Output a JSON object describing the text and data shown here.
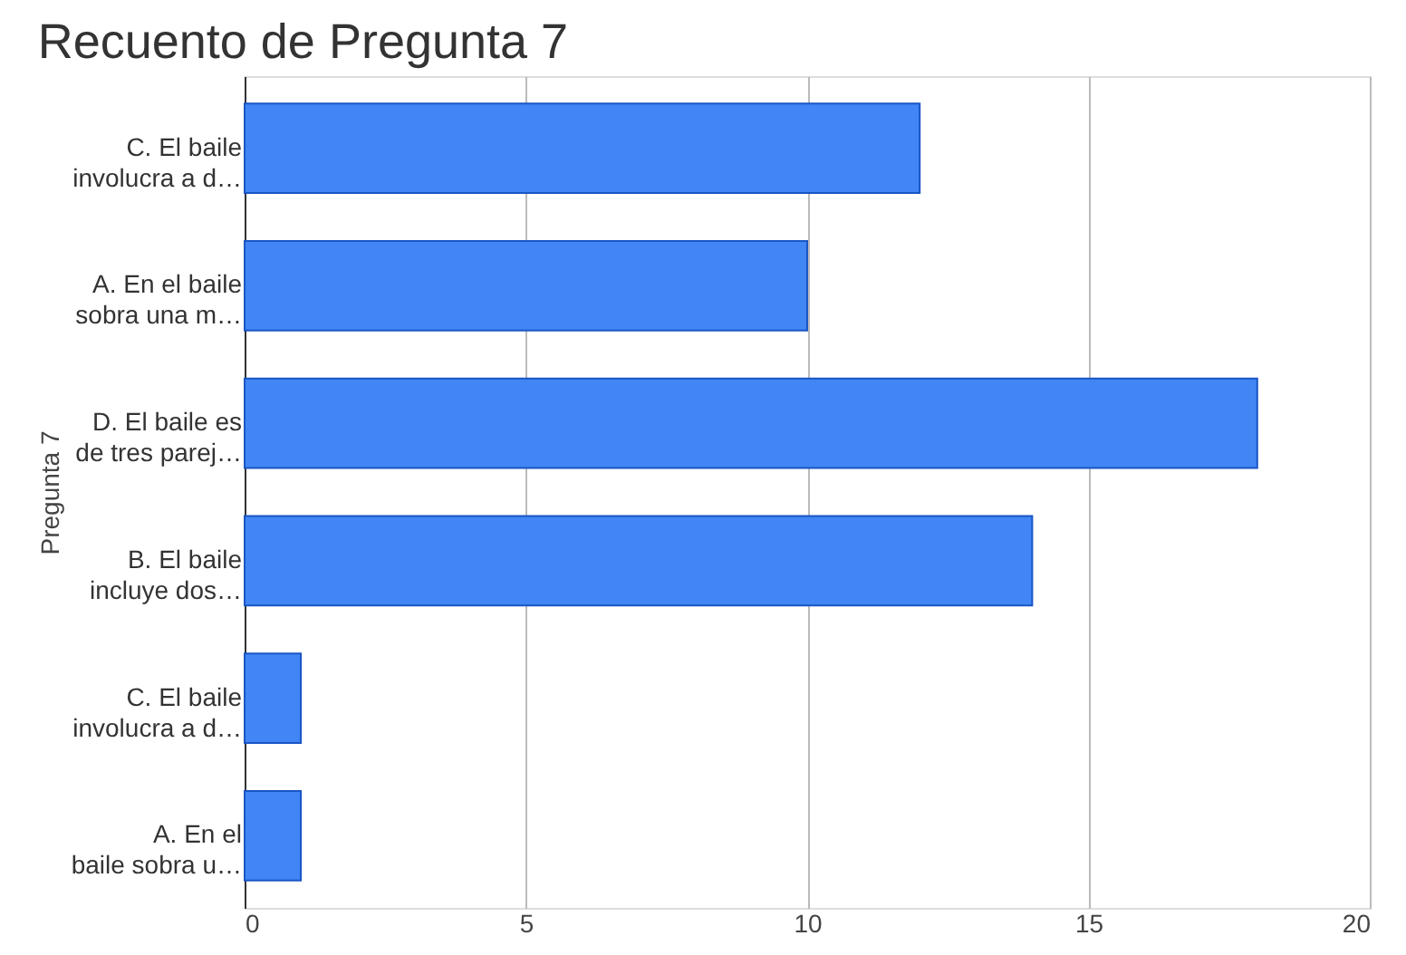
{
  "chart_data": {
    "type": "bar",
    "orientation": "horizontal",
    "title": "Recuento de Pregunta 7",
    "ylabel": "Pregunta 7",
    "categories": [
      "C. El baile\ninvolucra a d…",
      "A. En el baile\nsobra una m…",
      "D. El baile es\nde tres parej…",
      "B. El baile\nincluye dos…",
      "C.        El baile\ninvolucra a d…",
      "A.        En el\nbaile sobra u…"
    ],
    "values": [
      12,
      10,
      18,
      14,
      1,
      1
    ],
    "color": "#4285f4",
    "xlim": [
      0,
      20
    ],
    "xticks": [
      0,
      5,
      10,
      15,
      20
    ],
    "grid": "x"
  }
}
